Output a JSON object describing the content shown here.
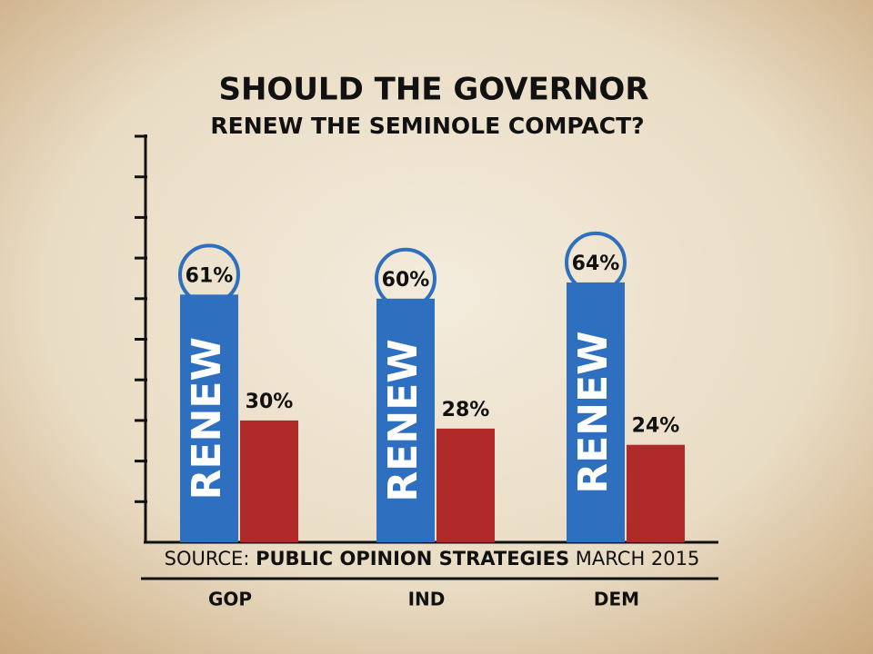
{
  "chart_data": {
    "type": "bar",
    "title": "SHOULD THE GOVERNOR",
    "subtitle": "RENEW THE SEMINOLE COMPACT?",
    "categories": [
      "GOP",
      "IND",
      "DEM"
    ],
    "series": [
      {
        "name": "RENEW",
        "color": "#2f6fbf",
        "values": [
          61,
          60,
          64
        ],
        "value_labels": [
          "61%",
          "60%",
          "64%"
        ]
      },
      {
        "color": "#b02a2a",
        "values": [
          30,
          28,
          24
        ],
        "value_labels": [
          "30%",
          "28%",
          "24%"
        ]
      }
    ],
    "ylim": [
      0,
      100
    ],
    "yticks": [
      10,
      20,
      30,
      40,
      50,
      60,
      70,
      80,
      90,
      100
    ],
    "source": [
      "SOURCE:",
      "PUBLIC OPINION STRATEGIES",
      "MARCH 2015"
    ]
  }
}
